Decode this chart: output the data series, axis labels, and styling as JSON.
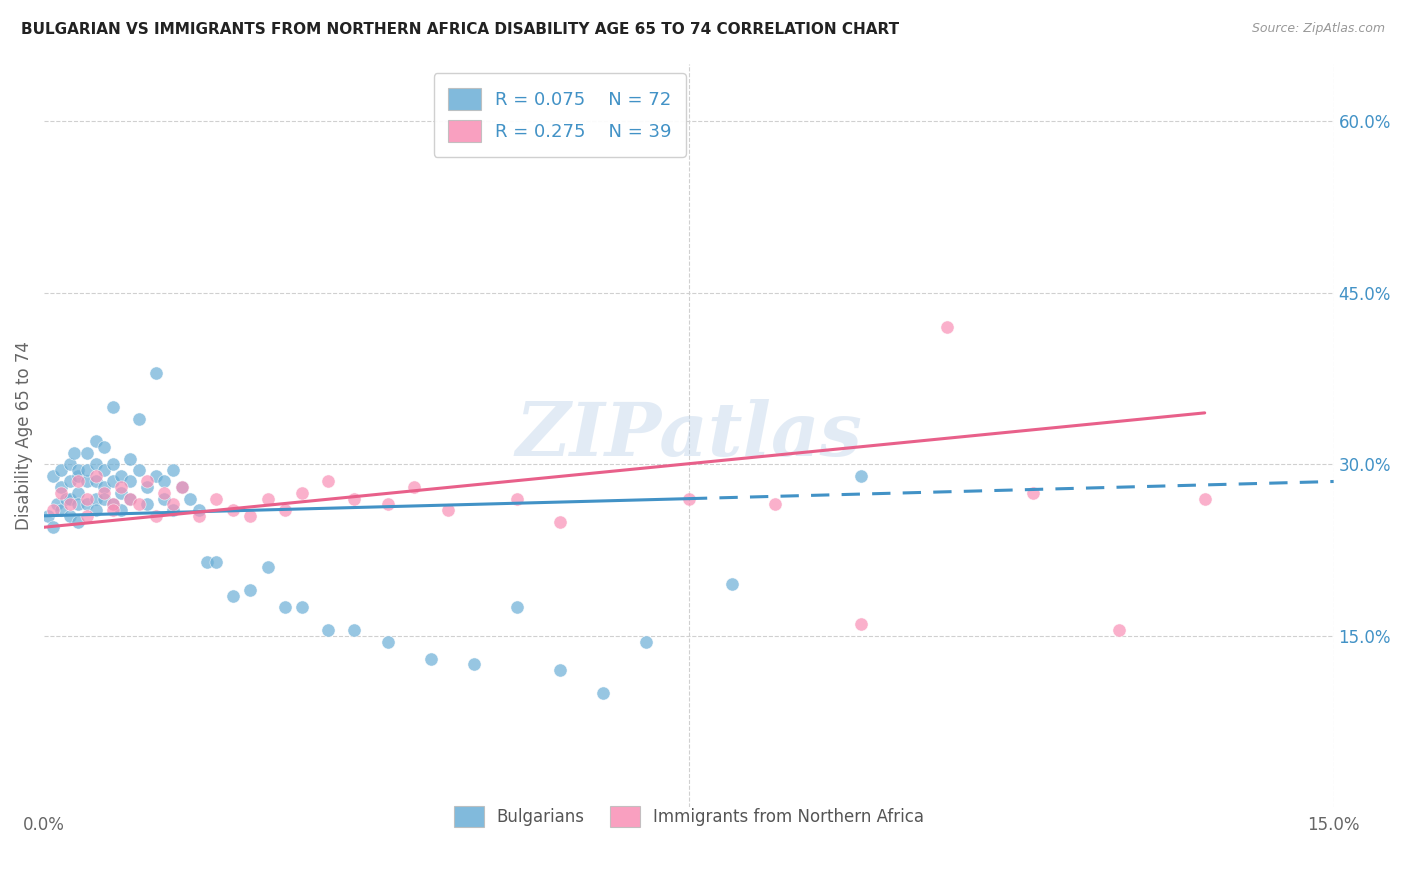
{
  "title": "BULGARIAN VS IMMIGRANTS FROM NORTHERN AFRICA DISABILITY AGE 65 TO 74 CORRELATION CHART",
  "source": "Source: ZipAtlas.com",
  "ylabel": "Disability Age 65 to 74",
  "xlim": [
    0.0,
    0.15
  ],
  "ylim": [
    0.0,
    0.65
  ],
  "blue_color": "#6baed6",
  "pink_color": "#f98fb5",
  "blue_line_color": "#4292c6",
  "pink_line_color": "#e8608a",
  "blue_R": 0.075,
  "blue_N": 72,
  "pink_R": 0.275,
  "pink_N": 39,
  "legend_label_blue": "Bulgarians",
  "legend_label_pink": "Immigrants from Northern Africa",
  "watermark": "ZIPatlas",
  "background_color": "#ffffff",
  "blue_scatter_x": [
    0.0005,
    0.001,
    0.001,
    0.0015,
    0.002,
    0.002,
    0.002,
    0.0025,
    0.003,
    0.003,
    0.003,
    0.003,
    0.0035,
    0.004,
    0.004,
    0.004,
    0.004,
    0.004,
    0.005,
    0.005,
    0.005,
    0.005,
    0.006,
    0.006,
    0.006,
    0.006,
    0.006,
    0.007,
    0.007,
    0.007,
    0.007,
    0.008,
    0.008,
    0.008,
    0.008,
    0.009,
    0.009,
    0.009,
    0.01,
    0.01,
    0.01,
    0.011,
    0.011,
    0.012,
    0.012,
    0.013,
    0.013,
    0.014,
    0.014,
    0.015,
    0.015,
    0.016,
    0.017,
    0.018,
    0.019,
    0.02,
    0.022,
    0.024,
    0.026,
    0.028,
    0.03,
    0.033,
    0.036,
    0.04,
    0.045,
    0.05,
    0.055,
    0.06,
    0.065,
    0.07,
    0.08,
    0.095
  ],
  "blue_scatter_y": [
    0.255,
    0.245,
    0.29,
    0.265,
    0.28,
    0.295,
    0.26,
    0.27,
    0.285,
    0.3,
    0.27,
    0.255,
    0.31,
    0.275,
    0.29,
    0.265,
    0.295,
    0.25,
    0.285,
    0.31,
    0.265,
    0.295,
    0.3,
    0.285,
    0.32,
    0.27,
    0.26,
    0.295,
    0.315,
    0.28,
    0.27,
    0.3,
    0.285,
    0.265,
    0.35,
    0.29,
    0.275,
    0.26,
    0.305,
    0.285,
    0.27,
    0.295,
    0.34,
    0.28,
    0.265,
    0.29,
    0.38,
    0.27,
    0.285,
    0.295,
    0.26,
    0.28,
    0.27,
    0.26,
    0.215,
    0.215,
    0.185,
    0.19,
    0.21,
    0.175,
    0.175,
    0.155,
    0.155,
    0.145,
    0.13,
    0.125,
    0.175,
    0.12,
    0.1,
    0.145,
    0.195,
    0.29
  ],
  "pink_scatter_x": [
    0.001,
    0.002,
    0.003,
    0.004,
    0.005,
    0.005,
    0.006,
    0.007,
    0.008,
    0.008,
    0.009,
    0.01,
    0.011,
    0.012,
    0.013,
    0.014,
    0.015,
    0.016,
    0.018,
    0.02,
    0.022,
    0.024,
    0.026,
    0.028,
    0.03,
    0.033,
    0.036,
    0.04,
    0.043,
    0.047,
    0.055,
    0.06,
    0.075,
    0.085,
    0.095,
    0.105,
    0.115,
    0.125,
    0.135
  ],
  "pink_scatter_y": [
    0.26,
    0.275,
    0.265,
    0.285,
    0.27,
    0.255,
    0.29,
    0.275,
    0.265,
    0.26,
    0.28,
    0.27,
    0.265,
    0.285,
    0.255,
    0.275,
    0.265,
    0.28,
    0.255,
    0.27,
    0.26,
    0.255,
    0.27,
    0.26,
    0.275,
    0.285,
    0.27,
    0.265,
    0.28,
    0.26,
    0.27,
    0.25,
    0.27,
    0.265,
    0.16,
    0.42,
    0.275,
    0.155,
    0.27
  ],
  "blue_line_x0": 0.0,
  "blue_line_x1": 0.075,
  "blue_line_x2": 0.15,
  "blue_line_y0": 0.255,
  "blue_line_y1": 0.27,
  "blue_line_y2": 0.285,
  "pink_line_x0": 0.0,
  "pink_line_x1": 0.135,
  "pink_line_y0": 0.245,
  "pink_line_y1": 0.345
}
